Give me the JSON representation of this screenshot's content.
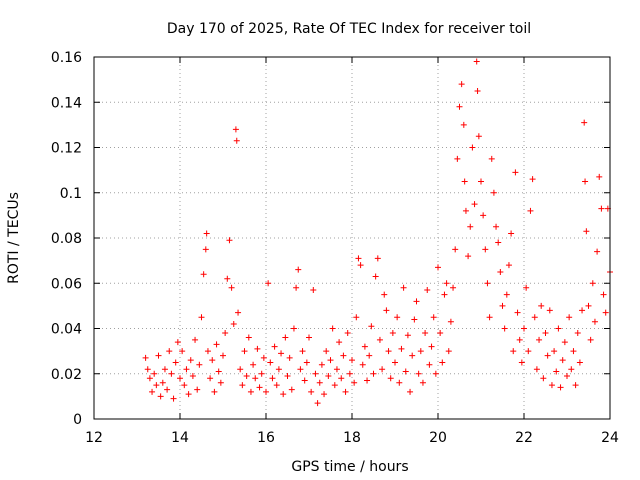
{
  "chart_data": {
    "type": "scatter",
    "title": "Day 170 of 2025, Rate Of TEC Index for receiver toil",
    "xlabel": "GPS time / hours",
    "ylabel": "ROTI / TECUs",
    "xlim": [
      12,
      24
    ],
    "ylim": [
      0,
      0.16
    ],
    "x_ticks": [
      12,
      14,
      16,
      18,
      20,
      22,
      24
    ],
    "x_tick_labels": [
      "12",
      "14",
      "16",
      "18",
      "20",
      "22",
      "24"
    ],
    "y_ticks": [
      0,
      0.02,
      0.04,
      0.06,
      0.08,
      0.1,
      0.12,
      0.14,
      0.16
    ],
    "y_tick_labels": [
      "0",
      "0.02",
      "0.04",
      "0.06",
      "0.08",
      "0.1",
      "0.12",
      "0.14",
      "0.16"
    ],
    "grid": true,
    "marker": "+",
    "color": "#ff0000",
    "series": [
      {
        "name": "ROTI",
        "points": [
          [
            13.2,
            0.027
          ],
          [
            13.25,
            0.022
          ],
          [
            13.3,
            0.018
          ],
          [
            13.35,
            0.012
          ],
          [
            13.4,
            0.02
          ],
          [
            13.45,
            0.015
          ],
          [
            13.5,
            0.028
          ],
          [
            13.55,
            0.01
          ],
          [
            13.6,
            0.016
          ],
          [
            13.65,
            0.022
          ],
          [
            13.7,
            0.013
          ],
          [
            13.75,
            0.03
          ],
          [
            13.8,
            0.02
          ],
          [
            13.85,
            0.009
          ],
          [
            13.9,
            0.025
          ],
          [
            13.95,
            0.034
          ],
          [
            14.0,
            0.018
          ],
          [
            14.05,
            0.03
          ],
          [
            14.1,
            0.015
          ],
          [
            14.15,
            0.022
          ],
          [
            14.2,
            0.011
          ],
          [
            14.25,
            0.026
          ],
          [
            14.3,
            0.019
          ],
          [
            14.35,
            0.035
          ],
          [
            14.4,
            0.013
          ],
          [
            14.45,
            0.024
          ],
          [
            14.5,
            0.045
          ],
          [
            14.55,
            0.064
          ],
          [
            14.6,
            0.075
          ],
          [
            14.62,
            0.082
          ],
          [
            14.65,
            0.03
          ],
          [
            14.7,
            0.018
          ],
          [
            14.75,
            0.026
          ],
          [
            14.8,
            0.012
          ],
          [
            14.85,
            0.033
          ],
          [
            14.9,
            0.021
          ],
          [
            14.95,
            0.016
          ],
          [
            15.0,
            0.028
          ],
          [
            15.05,
            0.038
          ],
          [
            15.1,
            0.062
          ],
          [
            15.15,
            0.079
          ],
          [
            15.2,
            0.058
          ],
          [
            15.25,
            0.042
          ],
          [
            15.3,
            0.128
          ],
          [
            15.32,
            0.123
          ],
          [
            15.35,
            0.047
          ],
          [
            15.4,
            0.022
          ],
          [
            15.45,
            0.015
          ],
          [
            15.5,
            0.03
          ],
          [
            15.55,
            0.019
          ],
          [
            15.6,
            0.036
          ],
          [
            15.65,
            0.012
          ],
          [
            15.7,
            0.024
          ],
          [
            15.75,
            0.018
          ],
          [
            15.8,
            0.031
          ],
          [
            15.85,
            0.014
          ],
          [
            15.9,
            0.02
          ],
          [
            15.95,
            0.027
          ],
          [
            16.0,
            0.012
          ],
          [
            16.05,
            0.06
          ],
          [
            16.1,
            0.025
          ],
          [
            16.15,
            0.018
          ],
          [
            16.2,
            0.032
          ],
          [
            16.25,
            0.015
          ],
          [
            16.3,
            0.022
          ],
          [
            16.35,
            0.029
          ],
          [
            16.4,
            0.011
          ],
          [
            16.45,
            0.036
          ],
          [
            16.5,
            0.019
          ],
          [
            16.55,
            0.027
          ],
          [
            16.6,
            0.013
          ],
          [
            16.65,
            0.04
          ],
          [
            16.7,
            0.058
          ],
          [
            16.75,
            0.066
          ],
          [
            16.8,
            0.022
          ],
          [
            16.85,
            0.03
          ],
          [
            16.9,
            0.017
          ],
          [
            16.95,
            0.025
          ],
          [
            17.0,
            0.036
          ],
          [
            17.05,
            0.012
          ],
          [
            17.1,
            0.057
          ],
          [
            17.15,
            0.02
          ],
          [
            17.2,
            0.007
          ],
          [
            17.25,
            0.016
          ],
          [
            17.3,
            0.024
          ],
          [
            17.35,
            0.011
          ],
          [
            17.4,
            0.03
          ],
          [
            17.45,
            0.019
          ],
          [
            17.5,
            0.026
          ],
          [
            17.55,
            0.04
          ],
          [
            17.6,
            0.015
          ],
          [
            17.65,
            0.022
          ],
          [
            17.7,
            0.034
          ],
          [
            17.75,
            0.018
          ],
          [
            17.8,
            0.028
          ],
          [
            17.85,
            0.012
          ],
          [
            17.9,
            0.038
          ],
          [
            17.95,
            0.02
          ],
          [
            18.0,
            0.026
          ],
          [
            18.05,
            0.016
          ],
          [
            18.1,
            0.045
          ],
          [
            18.15,
            0.071
          ],
          [
            18.2,
            0.068
          ],
          [
            18.25,
            0.024
          ],
          [
            18.3,
            0.032
          ],
          [
            18.35,
            0.017
          ],
          [
            18.4,
            0.028
          ],
          [
            18.45,
            0.041
          ],
          [
            18.5,
            0.02
          ],
          [
            18.55,
            0.063
          ],
          [
            18.6,
            0.071
          ],
          [
            18.65,
            0.035
          ],
          [
            18.7,
            0.022
          ],
          [
            18.75,
            0.055
          ],
          [
            18.8,
            0.048
          ],
          [
            18.85,
            0.03
          ],
          [
            18.9,
            0.018
          ],
          [
            18.95,
            0.038
          ],
          [
            19.0,
            0.025
          ],
          [
            19.05,
            0.045
          ],
          [
            19.1,
            0.016
          ],
          [
            19.15,
            0.031
          ],
          [
            19.2,
            0.058
          ],
          [
            19.25,
            0.021
          ],
          [
            19.3,
            0.037
          ],
          [
            19.35,
            0.012
          ],
          [
            19.4,
            0.028
          ],
          [
            19.45,
            0.044
          ],
          [
            19.5,
            0.052
          ],
          [
            19.55,
            0.02
          ],
          [
            19.6,
            0.03
          ],
          [
            19.65,
            0.016
          ],
          [
            19.7,
            0.038
          ],
          [
            19.75,
            0.057
          ],
          [
            19.8,
            0.024
          ],
          [
            19.85,
            0.032
          ],
          [
            19.9,
            0.045
          ],
          [
            19.95,
            0.02
          ],
          [
            20.0,
            0.067
          ],
          [
            20.05,
            0.038
          ],
          [
            20.1,
            0.025
          ],
          [
            20.15,
            0.055
          ],
          [
            20.2,
            0.06
          ],
          [
            20.25,
            0.03
          ],
          [
            20.3,
            0.043
          ],
          [
            20.35,
            0.058
          ],
          [
            20.4,
            0.075
          ],
          [
            20.45,
            0.115
          ],
          [
            20.5,
            0.138
          ],
          [
            20.55,
            0.148
          ],
          [
            20.6,
            0.13
          ],
          [
            20.62,
            0.105
          ],
          [
            20.65,
            0.092
          ],
          [
            20.7,
            0.072
          ],
          [
            20.75,
            0.085
          ],
          [
            20.8,
            0.12
          ],
          [
            20.85,
            0.095
          ],
          [
            20.9,
            0.158
          ],
          [
            20.92,
            0.145
          ],
          [
            20.95,
            0.125
          ],
          [
            21.0,
            0.105
          ],
          [
            21.05,
            0.09
          ],
          [
            21.1,
            0.075
          ],
          [
            21.15,
            0.06
          ],
          [
            21.2,
            0.045
          ],
          [
            21.25,
            0.115
          ],
          [
            21.3,
            0.1
          ],
          [
            21.35,
            0.085
          ],
          [
            21.4,
            0.078
          ],
          [
            21.45,
            0.065
          ],
          [
            21.5,
            0.05
          ],
          [
            21.55,
            0.04
          ],
          [
            21.6,
            0.055
          ],
          [
            21.65,
            0.068
          ],
          [
            21.7,
            0.082
          ],
          [
            21.75,
            0.03
          ],
          [
            21.8,
            0.109
          ],
          [
            21.85,
            0.047
          ],
          [
            21.9,
            0.035
          ],
          [
            21.95,
            0.025
          ],
          [
            22.0,
            0.04
          ],
          [
            22.05,
            0.058
          ],
          [
            22.1,
            0.03
          ],
          [
            22.15,
            0.092
          ],
          [
            22.2,
            0.106
          ],
          [
            22.25,
            0.045
          ],
          [
            22.3,
            0.022
          ],
          [
            22.35,
            0.035
          ],
          [
            22.4,
            0.05
          ],
          [
            22.45,
            0.018
          ],
          [
            22.5,
            0.038
          ],
          [
            22.55,
            0.028
          ],
          [
            22.6,
            0.048
          ],
          [
            22.65,
            0.015
          ],
          [
            22.7,
            0.03
          ],
          [
            22.75,
            0.021
          ],
          [
            22.8,
            0.04
          ],
          [
            22.85,
            0.014
          ],
          [
            22.9,
            0.026
          ],
          [
            22.95,
            0.034
          ],
          [
            23.0,
            0.019
          ],
          [
            23.05,
            0.045
          ],
          [
            23.1,
            0.022
          ],
          [
            23.15,
            0.03
          ],
          [
            23.2,
            0.015
          ],
          [
            23.25,
            0.038
          ],
          [
            23.3,
            0.025
          ],
          [
            23.35,
            0.048
          ],
          [
            23.4,
            0.131
          ],
          [
            23.42,
            0.105
          ],
          [
            23.45,
            0.083
          ],
          [
            23.5,
            0.05
          ],
          [
            23.55,
            0.035
          ],
          [
            23.6,
            0.06
          ],
          [
            23.65,
            0.043
          ],
          [
            23.7,
            0.074
          ],
          [
            23.75,
            0.107
          ],
          [
            23.8,
            0.093
          ],
          [
            23.85,
            0.055
          ],
          [
            23.9,
            0.047
          ],
          [
            23.95,
            0.093
          ],
          [
            24.0,
            0.065
          ]
        ]
      }
    ]
  }
}
